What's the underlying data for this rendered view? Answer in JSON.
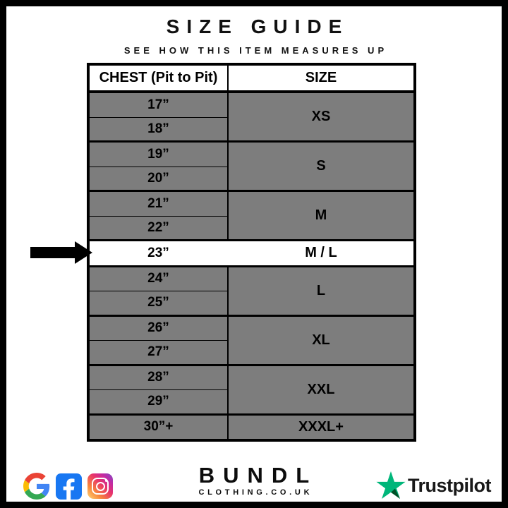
{
  "header": {
    "title": "SIZE GUIDE",
    "subtitle": "SEE HOW THIS ITEM MEASURES UP"
  },
  "table": {
    "columns": [
      "CHEST (Pit to Pit)",
      "SIZE"
    ],
    "groups": [
      {
        "size": "XS",
        "chests": [
          "17”",
          "18”"
        ],
        "highlight": false
      },
      {
        "size": "S",
        "chests": [
          "19”",
          "20”"
        ],
        "highlight": false
      },
      {
        "size": "M",
        "chests": [
          "21”",
          "22”"
        ],
        "highlight": false
      },
      {
        "size": "M / L",
        "chests": [
          "23”"
        ],
        "highlight": true
      },
      {
        "size": "L",
        "chests": [
          "24”",
          "25”"
        ],
        "highlight": false
      },
      {
        "size": "XL",
        "chests": [
          "26”",
          "27”"
        ],
        "highlight": false
      },
      {
        "size": "XXL",
        "chests": [
          "28”",
          "29”"
        ],
        "highlight": false
      },
      {
        "size": "XXXL+",
        "chests": [
          "30”+"
        ],
        "highlight": false
      }
    ],
    "highlighted_row": {
      "chest": "23”",
      "size": "M / L"
    }
  },
  "footer": {
    "brand": {
      "name": "BUNDL",
      "domain": "CLOTHING.CO.UK"
    },
    "social_icons": [
      "google",
      "facebook",
      "instagram"
    ],
    "trustpilot_label": "Trustpilot"
  },
  "colors": {
    "row_gray": "#7d7d7d",
    "highlight_row": "#ffffff",
    "border_black": "#000000",
    "facebook_blue": "#1877F2",
    "trustpilot_green": "#00B67A",
    "trustpilot_dark_green": "#005128"
  }
}
